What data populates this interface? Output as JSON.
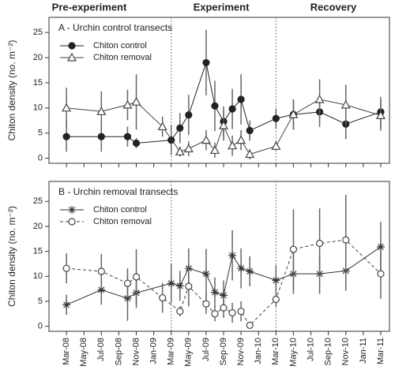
{
  "phases": [
    "Pre-experiment",
    "Experiment",
    "Recovery"
  ],
  "phase_breaks": [
    "Mar-09",
    "Mar-10"
  ],
  "ylabel": "Chiton density (no. m⁻²)",
  "chart_data": [
    {
      "type": "line",
      "title": "A - Urchin control transects",
      "xlim": [
        "Jan-08",
        "Apr-11"
      ],
      "ylim": [
        -1,
        28
      ],
      "yticks": [
        0,
        5,
        10,
        15,
        20,
        25
      ],
      "series": [
        {
          "name": "Chiton control",
          "color": "#222222",
          "marker": "filled-circle",
          "dashed": false,
          "x": [
            "Mar-08",
            "Jul-08",
            "Oct-08",
            "Nov-08",
            "Mar-09",
            "Apr-09",
            "May-09",
            "Jul-09",
            "Aug-09",
            "Sep-09",
            "Oct-09",
            "Nov-09",
            "Dec-09",
            "Mar-10",
            "May-10",
            "Aug-10",
            "Nov-10",
            "Mar-11"
          ],
          "values": [
            4.3,
            4.3,
            4.3,
            3.0,
            3.6,
            6.0,
            8.6,
            19.0,
            10.4,
            7.3,
            9.8,
            11.7,
            5.5,
            7.9,
            8.7,
            9.2,
            6.8,
            9.2
          ],
          "errors": [
            3,
            3,
            2,
            1,
            3,
            3,
            4,
            6.5,
            5,
            3,
            4,
            5,
            2,
            2,
            3,
            3,
            3,
            3
          ]
        },
        {
          "name": "Chiton removal",
          "color": "#444444",
          "marker": "open-triangle",
          "dashed": false,
          "x": [
            "Mar-08",
            "Jul-08",
            "Oct-08",
            "Nov-08",
            "Feb-09",
            "Apr-09",
            "May-09",
            "Jul-09",
            "Aug-09",
            "Sep-09",
            "Oct-09",
            "Nov-09",
            "Dec-09",
            "Mar-10",
            "May-10",
            "Aug-10",
            "Nov-10",
            "Mar-11"
          ],
          "values": [
            10.0,
            9.3,
            10.6,
            11.2,
            6.3,
            1.3,
            1.9,
            3.6,
            1.6,
            6.5,
            2.5,
            3.6,
            0.8,
            2.4,
            8.7,
            11.7,
            10.6,
            8.5
          ],
          "errors": [
            4,
            4,
            3,
            5.5,
            2,
            1,
            1.5,
            2,
            1.5,
            3,
            2,
            2,
            1,
            1,
            3,
            4,
            4,
            3
          ]
        }
      ]
    },
    {
      "type": "line",
      "title": "B - Urchin removal transects",
      "xlim": [
        "Jan-08",
        "Apr-11"
      ],
      "ylim": [
        -1,
        29
      ],
      "yticks": [
        0,
        5,
        10,
        15,
        20,
        25
      ],
      "xticks": [
        "Mar-08",
        "May-08",
        "Jul-08",
        "Sep-08",
        "Nov-08",
        "Jan-09",
        "Mar-09",
        "May-09",
        "Jul-09",
        "Sep-09",
        "Nov-09",
        "Jan-10",
        "Mar-10",
        "May-10",
        "Jul-10",
        "Sep-10",
        "Nov-10",
        "Jan-11",
        "Mar-11"
      ],
      "series": [
        {
          "name": "Chiton control",
          "color": "#333333",
          "marker": "asterisk",
          "dashed": false,
          "x": [
            "Mar-08",
            "Jul-08",
            "Oct-08",
            "Nov-08",
            "Mar-09",
            "Apr-09",
            "May-09",
            "Jul-09",
            "Aug-09",
            "Sep-09",
            "Oct-09",
            "Nov-09",
            "Dec-09",
            "Mar-10",
            "May-10",
            "Aug-10",
            "Nov-10",
            "Mar-11"
          ],
          "values": [
            4.3,
            7.3,
            5.6,
            6.7,
            8.6,
            8.1,
            11.6,
            10.5,
            6.8,
            6.2,
            14.2,
            11.6,
            11.0,
            9.2,
            10.5,
            10.5,
            11.1,
            15.9
          ],
          "errors": [
            2,
            3,
            4.5,
            3,
            4,
            3,
            4,
            5,
            3,
            3,
            5,
            4,
            3,
            3,
            4,
            4,
            4,
            5
          ]
        },
        {
          "name": "Chiton removal",
          "color": "#444444",
          "marker": "open-circle",
          "dashed": true,
          "x": [
            "Mar-08",
            "Jul-08",
            "Oct-08",
            "Nov-08",
            "Feb-09",
            "Apr-09",
            "May-09",
            "Jul-09",
            "Aug-09",
            "Sep-09",
            "Oct-09",
            "Nov-09",
            "Dec-09",
            "Mar-10",
            "May-10",
            "Aug-10",
            "Nov-10",
            "Mar-11"
          ],
          "values": [
            11.6,
            11.0,
            8.6,
            9.9,
            5.7,
            3.0,
            8.0,
            4.5,
            2.5,
            3.7,
            2.7,
            3.0,
            0.2,
            5.4,
            15.4,
            16.6,
            17.3,
            10.5
          ],
          "errors": [
            3,
            3.5,
            3,
            5.5,
            3,
            1,
            4,
            2,
            1.5,
            2,
            2,
            2,
            0.5,
            1.5,
            8,
            7,
            9,
            5
          ]
        }
      ]
    }
  ]
}
